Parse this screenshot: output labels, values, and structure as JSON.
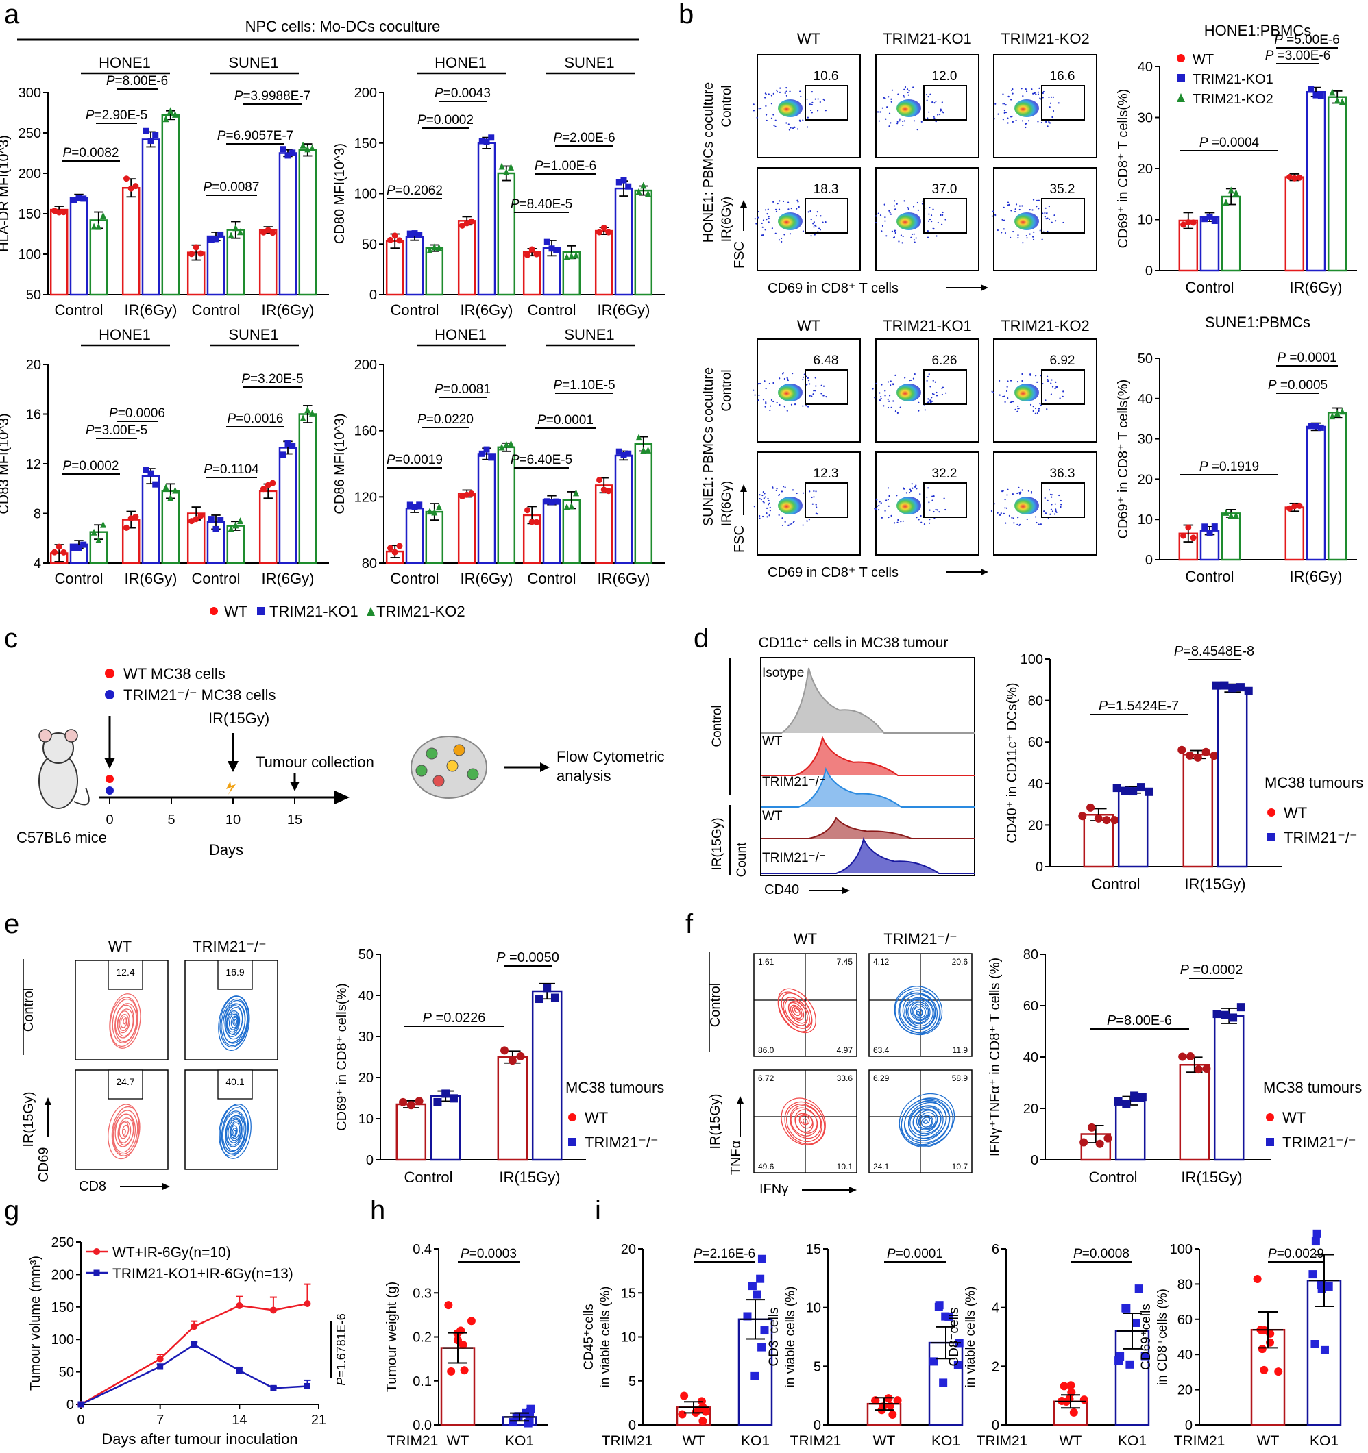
{
  "colors": {
    "wt": "#e31a1c",
    "ko1": "#1f1fc8",
    "ko2": "#1e8c2e",
    "wt_dark": "#b3161b",
    "ko_dark": "#13139a",
    "wt_dot": "#ff1010",
    "ko_dot": "#2424d8"
  },
  "panel_labels": [
    "a",
    "b",
    "c",
    "d",
    "e",
    "f",
    "g",
    "h",
    "i"
  ],
  "legend_a": [
    "WT",
    "TRIM21-KO1",
    "TRIM21-KO2"
  ],
  "flow_b": {
    "columns": [
      "WT",
      "TRIM21-KO1",
      "TRIM21-KO2"
    ],
    "top": {
      "side": "HONE1: PBMCs coculture",
      "rows": [
        "Control",
        "IR(6Gy)"
      ],
      "values": [
        [
          "10.6",
          "12.0",
          "16.6"
        ],
        [
          "18.3",
          "37.0",
          "35.2"
        ]
      ]
    },
    "bottom": {
      "side": "SUNE1: PBMCs coculture",
      "rows": [
        "Control",
        "IR(6Gy)"
      ],
      "values": [
        [
          "6.48",
          "6.26",
          "6.92"
        ],
        [
          "12.3",
          "32.2",
          "36.3"
        ]
      ]
    },
    "yaxis": "FSC",
    "xaxis": "CD69 in CD8⁺ T cells"
  },
  "panel_c": {
    "legend": [
      "WT MC38 cells",
      "TRIM21⁻/⁻ MC38 cells"
    ],
    "ir_label": "IR(15Gy)",
    "collection": "Tumour collection",
    "analysis": "Flow Cytometric analysis",
    "mouse": "C57BL6 mice",
    "days_label": "Days",
    "ticks": [
      "0",
      "5",
      "10",
      "15"
    ]
  },
  "panel_d_hist": {
    "title": "CD11c⁺ cells in MC38 tumour",
    "groups": [
      "Control",
      "IR(15Gy)"
    ],
    "tracks": [
      "Isotype",
      "WT",
      "TRIM21⁻/⁻",
      "WT",
      "TRIM21⁻/⁻"
    ],
    "xaxis": "CD40",
    "yaxis": "Count"
  },
  "panel_e_flow": {
    "columns": [
      "WT",
      "TRIM21⁻/⁻"
    ],
    "rows": [
      "Control",
      "IR(15Gy)"
    ],
    "values": [
      [
        "12.4",
        "16.9"
      ],
      [
        "24.7",
        "40.1"
      ]
    ],
    "xaxis": "CD8",
    "yaxis": "CD69"
  },
  "panel_f_flow": {
    "columns": [
      "WT",
      "TRIM21⁻/⁻"
    ],
    "rows": [
      "Control",
      "IR(15Gy)"
    ],
    "quadrants": [
      [
        [
          "1.61",
          "7.45",
          "86.0",
          "4.97"
        ],
        [
          "4.12",
          "20.6",
          "63.4",
          "11.9"
        ]
      ],
      [
        [
          "6.72",
          "33.6",
          "49.6",
          "10.1"
        ],
        [
          "6.29",
          "58.9",
          "24.1",
          "10.7"
        ]
      ]
    ],
    "xaxis": "IFNγ",
    "yaxis": "TNFα"
  },
  "legend_mc38": {
    "title": "MC38 tumours",
    "items": [
      "WT",
      "TRIM21⁻/⁻"
    ]
  },
  "chart_data": [
    {
      "id": "a1",
      "type": "bar",
      "header": "NPC cells: Mo-DCs coculture",
      "group_labels": [
        "HONE1",
        "SUNE1"
      ],
      "categories": [
        "Control",
        "IR(6Gy)",
        "Control",
        "IR(6Gy)"
      ],
      "series_names": [
        "WT",
        "TRIM21-KO1",
        "TRIM21-KO2"
      ],
      "ylabel": "HLA-DR MFI(10^3)",
      "ylim": [
        50,
        300
      ],
      "yticks": [
        "50",
        "100",
        "150",
        "200",
        "250",
        "300"
      ],
      "series": [
        {
          "name": "WT",
          "values": [
            155,
            182,
            102,
            130
          ]
        },
        {
          "name": "TRIM21-KO1",
          "values": [
            170,
            242,
            122,
            225
          ]
        },
        {
          "name": "TRIM21-KO2",
          "values": [
            142,
            272,
            130,
            229
          ]
        }
      ],
      "pvalues": [
        "P=0.0082",
        "P=2.90E-5",
        "P=8.00E-6",
        "P=0.0087",
        "P=6.9057E-7",
        "P=3.9988E-7"
      ]
    },
    {
      "id": "a2",
      "type": "bar",
      "group_labels": [
        "HONE1",
        "SUNE1"
      ],
      "categories": [
        "Control",
        "IR(6Gy)",
        "Control",
        "IR(6Gy)"
      ],
      "ylabel": "CD80 MFI(10^3)",
      "ylim": [
        0,
        200
      ],
      "yticks": [
        "0",
        "50",
        "100",
        "150",
        "200"
      ],
      "series": [
        {
          "name": "WT",
          "values": [
            53,
            73,
            42,
            63
          ]
        },
        {
          "name": "TRIM21-KO1",
          "values": [
            57,
            150,
            46,
            105
          ]
        },
        {
          "name": "TRIM21-KO2",
          "values": [
            46,
            120,
            42,
            103
          ]
        }
      ],
      "pvalues": [
        "P=0.2062",
        "P=0.0002",
        "P=0.0043",
        "P=8.40E-5",
        "P=1.00E-6",
        "P=2.00E-6"
      ]
    },
    {
      "id": "a3",
      "type": "bar",
      "group_labels": [
        "HONE1",
        "SUNE1"
      ],
      "categories": [
        "Control",
        "IR(6Gy)",
        "Control",
        "IR(6Gy)"
      ],
      "ylabel": "CD83 MFI(10^3)",
      "ylim": [
        4,
        20
      ],
      "yticks": [
        "4",
        "8",
        "12",
        "16",
        "20"
      ],
      "series": [
        {
          "name": "WT",
          "values": [
            4.8,
            7.5,
            8.0,
            9.8
          ]
        },
        {
          "name": "TRIM21-KO1",
          "values": [
            5.5,
            11.0,
            7.3,
            13.3
          ]
        },
        {
          "name": "TRIM21-KO2",
          "values": [
            6.5,
            9.8,
            7.0,
            16.0
          ]
        }
      ],
      "pvalues": [
        "P=0.0002",
        "P=3.00E-5",
        "P=0.0006",
        "P=0.1104",
        "P=0.0016",
        "P=3.20E-5"
      ]
    },
    {
      "id": "a4",
      "type": "bar",
      "group_labels": [
        "HONE1",
        "SUNE1"
      ],
      "categories": [
        "Control",
        "IR(6Gy)",
        "Control",
        "IR(6Gy)"
      ],
      "ylabel": "CD86 MFI(10^3)",
      "ylim": [
        80,
        200
      ],
      "yticks": [
        "80",
        "120",
        "160",
        "200"
      ],
      "series": [
        {
          "name": "WT",
          "values": [
            87,
            122,
            109,
            127
          ]
        },
        {
          "name": "TRIM21-KO1",
          "values": [
            113,
            146,
            118,
            145
          ]
        },
        {
          "name": "TRIM21-KO2",
          "values": [
            111,
            150,
            118,
            152
          ]
        }
      ],
      "pvalues": [
        "P=0.0019",
        "P=0.0220",
        "P=0.0081",
        "P=6.40E-5",
        "P=0.0001",
        "P=1.10E-5"
      ]
    },
    {
      "id": "b1",
      "type": "bar",
      "title": "HONE1:PBMCs",
      "categories": [
        "Control",
        "IR(6Gy)"
      ],
      "ylabel": "CD69⁺ in CD8⁺ T cells(%)",
      "ylim": [
        0,
        40
      ],
      "yticks": [
        "0",
        "10",
        "20",
        "30",
        "40"
      ],
      "series": [
        {
          "name": "WT",
          "values": [
            9.8,
            18.3
          ]
        },
        {
          "name": "TRIM21-KO1",
          "values": [
            10.5,
            35.0
          ]
        },
        {
          "name": "TRIM21-KO2",
          "values": [
            14.5,
            34.0
          ]
        }
      ],
      "pvalues": [
        "P =0.0004",
        "P =3.00E-6",
        "P =5.00E-6"
      ]
    },
    {
      "id": "b2",
      "type": "bar",
      "title": "SUNE1:PBMCs",
      "categories": [
        "Control",
        "IR(6Gy)"
      ],
      "ylabel": "CD69⁺ in CD8⁺ T cells(%)",
      "ylim": [
        0,
        50
      ],
      "yticks": [
        "0",
        "10",
        "20",
        "30",
        "40",
        "50"
      ],
      "series": [
        {
          "name": "WT",
          "values": [
            6.5,
            13.0
          ]
        },
        {
          "name": "TRIM21-KO1",
          "values": [
            7.2,
            33.0
          ]
        },
        {
          "name": "TRIM21-KO2",
          "values": [
            11.5,
            36.5
          ]
        }
      ],
      "pvalues": [
        "P =0.1919",
        "P =0.0005",
        "P =0.0001"
      ]
    },
    {
      "id": "d",
      "type": "bar",
      "categories": [
        "Control",
        "IR(15Gy)"
      ],
      "ylabel": "CD40⁺ in CD11c⁺ DCs(%)",
      "ylim": [
        0,
        100
      ],
      "yticks": [
        "0",
        "20",
        "40",
        "60",
        "80",
        "100"
      ],
      "series": [
        {
          "name": "WT",
          "values": [
            25,
            54
          ]
        },
        {
          "name": "TRIM21⁻/⁻",
          "values": [
            37,
            86
          ]
        }
      ],
      "pvalues": [
        "P=1.5424E-7",
        "P=8.4548E-8"
      ]
    },
    {
      "id": "e",
      "type": "bar",
      "categories": [
        "Control",
        "IR(15Gy)"
      ],
      "ylabel": "CD69⁺ in CD8⁺ cells(%)",
      "ylim": [
        0,
        50
      ],
      "yticks": [
        "0",
        "10",
        "20",
        "30",
        "40",
        "50"
      ],
      "series": [
        {
          "name": "WT",
          "values": [
            13.5,
            25
          ]
        },
        {
          "name": "TRIM21⁻/⁻",
          "values": [
            15.5,
            41
          ]
        }
      ],
      "pvalues": [
        "P =0.0226",
        "P =0.0050"
      ]
    },
    {
      "id": "f",
      "type": "bar",
      "categories": [
        "Control",
        "IR(15Gy)"
      ],
      "ylabel": "IFNγ⁺TNFα⁺ in CD8⁺ T cells (%)",
      "ylim": [
        0,
        80
      ],
      "yticks": [
        "0",
        "20",
        "40",
        "60",
        "80"
      ],
      "series": [
        {
          "name": "WT",
          "values": [
            10,
            37
          ]
        },
        {
          "name": "TRIM21⁻/⁻",
          "values": [
            23,
            56
          ]
        }
      ],
      "pvalues": [
        "P=8.00E-6",
        "P =0.0002"
      ]
    },
    {
      "id": "g",
      "type": "line",
      "xlabel": "Days after tumour inoculation",
      "ylabel": "Tumour volume (mm³)",
      "xlim": [
        0,
        21
      ],
      "ylim": [
        0,
        250
      ],
      "xticks": [
        "0",
        "7",
        "14",
        "21"
      ],
      "yticks": [
        "0",
        "50",
        "100",
        "150",
        "200",
        "250"
      ],
      "series": [
        {
          "name": "WT+IR-6Gy(n=10)",
          "x": [
            0,
            7,
            10,
            14,
            17,
            20
          ],
          "y": [
            0,
            70,
            120,
            152,
            145,
            155
          ]
        },
        {
          "name": "TRIM21-KO1+IR-6Gy(n=13)",
          "x": [
            0,
            7,
            10,
            14,
            17,
            20
          ],
          "y": [
            0,
            58,
            92,
            52,
            25,
            28
          ]
        }
      ],
      "pvalue": "P=1.6781E-6"
    },
    {
      "id": "h",
      "type": "bar",
      "categories": [
        "WT",
        "KO1"
      ],
      "row_label": "TRIM21",
      "ylabel": "Tumour weight (g)",
      "ylim": [
        0,
        0.4
      ],
      "yticks": [
        "0.0",
        "0.1",
        "0.2",
        "0.3",
        "0.4"
      ],
      "values": [
        0.175,
        0.018
      ],
      "pvalue": "P=0.0003"
    },
    {
      "id": "i1",
      "type": "bar",
      "categories": [
        "WT",
        "KO1"
      ],
      "row_label": "TRIM21",
      "ylabel": "CD45⁺cells in viable cells (%)",
      "ylim": [
        0,
        20
      ],
      "yticks": [
        "0",
        "5",
        "10",
        "15",
        "20"
      ],
      "values": [
        2,
        12
      ],
      "pvalue": "P=2.16E-6"
    },
    {
      "id": "i2",
      "type": "bar",
      "categories": [
        "WT",
        "KO1"
      ],
      "row_label": "TRIM21",
      "ylabel": "CD3⁺cells in viable cells (%)",
      "ylim": [
        0,
        15
      ],
      "yticks": [
        "0",
        "5",
        "10",
        "15"
      ],
      "values": [
        1.8,
        7
      ],
      "pvalue": "P=0.0001"
    },
    {
      "id": "i3",
      "type": "bar",
      "categories": [
        "WT",
        "KO1"
      ],
      "row_label": "TRIM21",
      "ylabel": "CD8⁺cells in viable cells (%)",
      "ylim": [
        0,
        6
      ],
      "yticks": [
        "0",
        "2",
        "4",
        "6"
      ],
      "values": [
        0.8,
        3.2
      ],
      "pvalue": "P=0.0008"
    },
    {
      "id": "i4",
      "type": "bar",
      "categories": [
        "WT",
        "KO1"
      ],
      "row_label": "TRIM21",
      "ylabel": "CD69⁺cells in CD8⁺cells (%)",
      "ylim": [
        0,
        100
      ],
      "yticks": [
        "0",
        "20",
        "40",
        "60",
        "80",
        "100"
      ],
      "values": [
        54,
        82
      ],
      "pvalue": "P=0.0029"
    }
  ]
}
